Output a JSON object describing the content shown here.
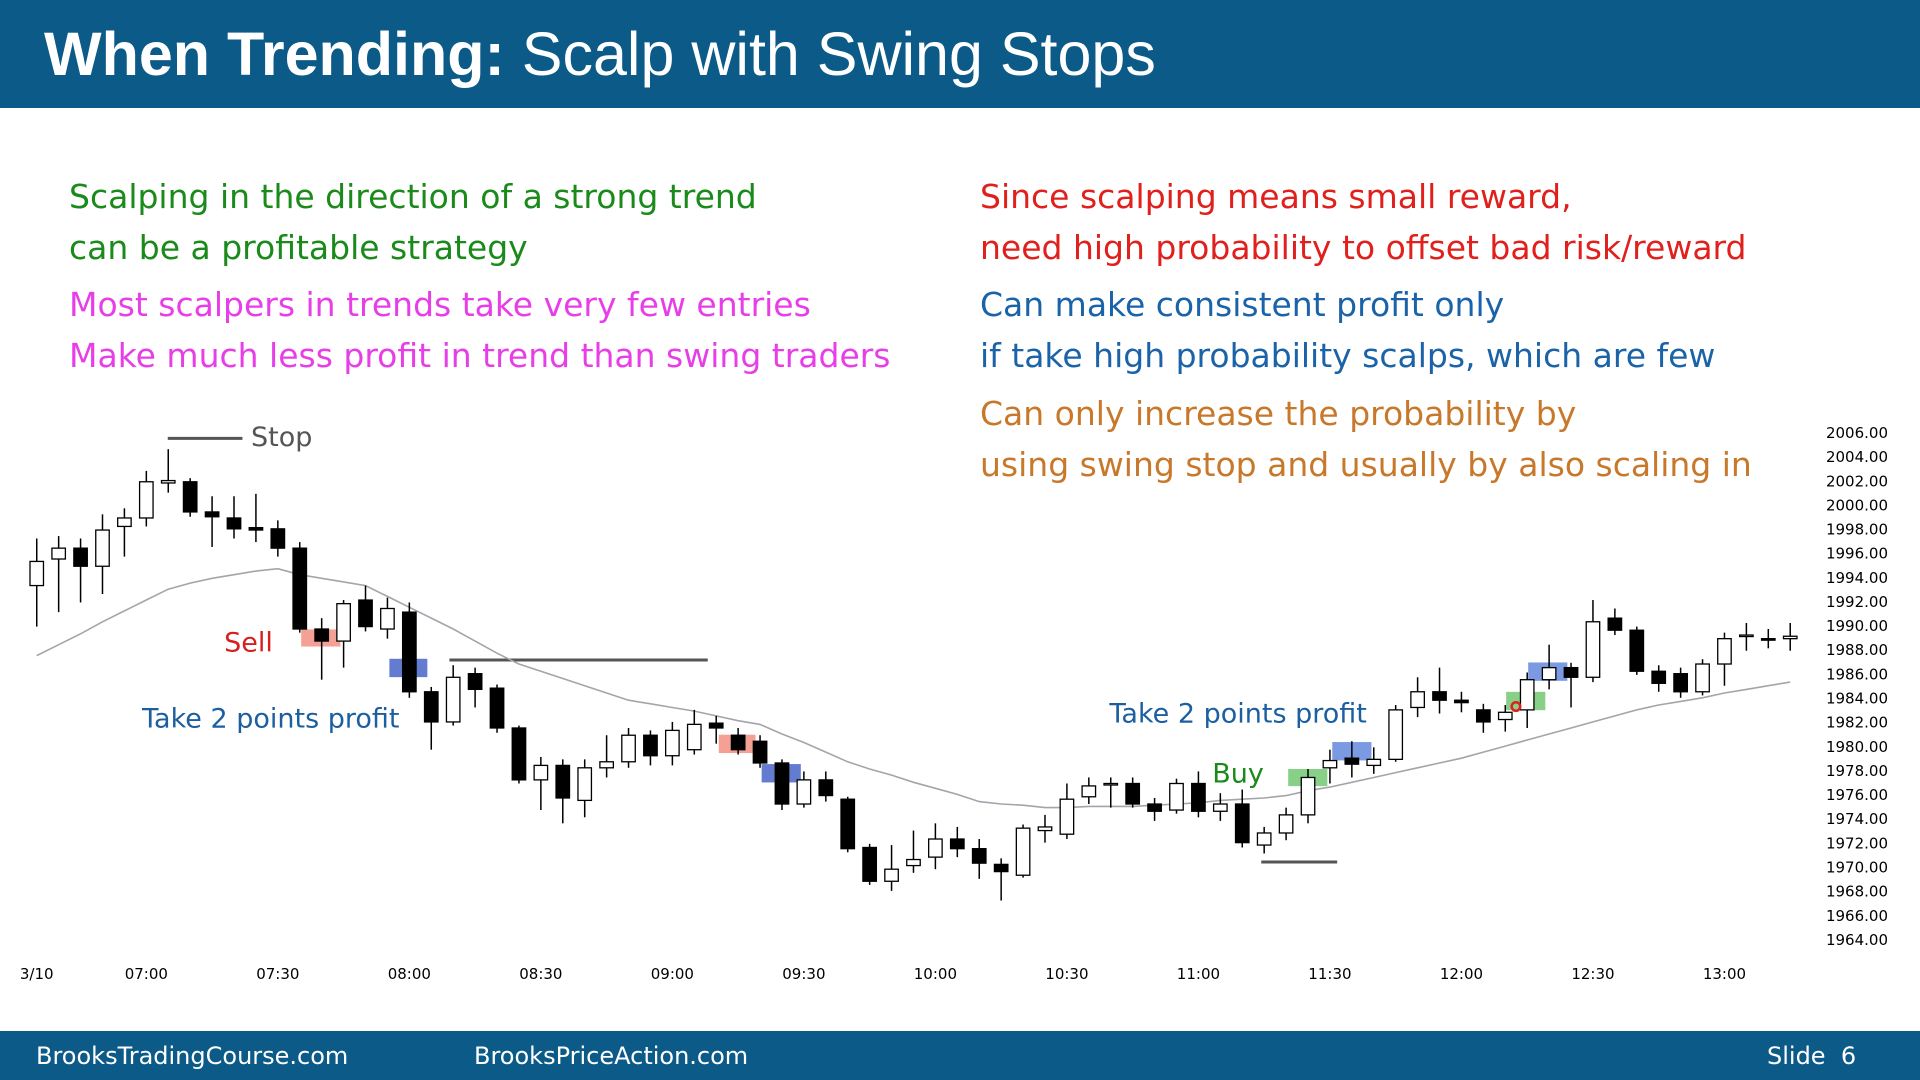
{
  "header": {
    "title_bold": "When Trending:",
    "title_rest": "Scalp with Swing Stops"
  },
  "notes": [
    {
      "color": "#1a8a1a",
      "lines": [
        "Scalping in the direction of a strong trend",
        "can be a profitable strategy"
      ]
    },
    {
      "color": "#e83ee8",
      "lines": [
        "Most scalpers in trends take very few entries",
        "Make much less profit in trend than swing traders"
      ]
    },
    {
      "color": "#e0201c",
      "lines": [
        "Since scalping means small reward,",
        "need high probability to offset bad risk/reward"
      ]
    },
    {
      "color": "#1b63a8",
      "lines": [
        "Can make consistent profit only",
        "if take high probability scalps, which are few"
      ]
    },
    {
      "color": "#c8782a",
      "lines": [
        "Can only increase the probability by",
        "using swing stop and usually by also scaling in"
      ]
    }
  ],
  "chart_data": {
    "type": "candlestick",
    "categories": [
      "3/10",
      null,
      null,
      null,
      null,
      "07:00",
      null,
      null,
      null,
      null,
      null,
      "07:30",
      null,
      null,
      null,
      null,
      null,
      "08:00",
      null,
      null,
      null,
      null,
      null,
      "08:30",
      null,
      null,
      null,
      null,
      null,
      "09:00",
      null,
      null,
      null,
      null,
      null,
      "09:30",
      null,
      null,
      null,
      null,
      null,
      "10:00",
      null,
      null,
      null,
      null,
      null,
      "10:30",
      null,
      null,
      null,
      null,
      null,
      "11:00",
      null,
      null,
      null,
      null,
      null,
      "11:30",
      null,
      null,
      null,
      null,
      null,
      "12:00",
      null,
      null,
      null,
      null,
      null,
      "12:30",
      null,
      null,
      null,
      null,
      null,
      "13:00",
      null,
      null,
      null
    ],
    "open": [
      1993.4,
      1995.6,
      1996.5,
      1995.0,
      1998.3,
      1999.0,
      2001.9,
      2002.0,
      1999.5,
      1999.0,
      1998.2,
      1998.1,
      1996.5,
      1989.8,
      1988.8,
      1992.2,
      1989.8,
      1991.2,
      1984.6,
      1982.1,
      1986.1,
      1984.9,
      1981.6,
      1977.3,
      1978.5,
      1975.6,
      1978.3,
      1978.8,
      1981.0,
      1979.3,
      1979.8,
      1982.0,
      1981.0,
      1980.5,
      1978.7,
      1975.3,
      1977.3,
      1975.7,
      1971.7,
      1968.9,
      1970.2,
      1970.9,
      1972.4,
      1971.6,
      1970.3,
      1969.4,
      1973.1,
      1972.8,
      1975.9,
      1976.9,
      1977.0,
      1975.3,
      1974.8,
      1977.0,
      1974.7,
      1975.3,
      1971.9,
      1972.9,
      1974.4,
      1978.3,
      1979.1,
      1978.5,
      1979.0,
      1983.3,
      1984.6,
      1983.9,
      1983.1,
      1982.3,
      1983.1,
      1985.6,
      1986.6,
      1985.8,
      1990.7,
      1989.7,
      1986.3,
      1986.1,
      1984.6,
      1986.9,
      1989.2,
      1989.0,
      1989.0
    ],
    "high": [
      1997.3,
      1997.5,
      1997.3,
      1999.3,
      1999.8,
      2002.9,
      2004.7,
      2002.3,
      2000.8,
      2000.8,
      2001.0,
      1998.8,
      1997.0,
      1990.7,
      1992.2,
      1993.4,
      1992.4,
      1992.0,
      1985.0,
      1986.8,
      1986.6,
      1985.2,
      1981.8,
      1979.2,
      1979.0,
      1979.0,
      1981.0,
      1981.6,
      1981.4,
      1982.1,
      1983.1,
      1982.6,
      1981.6,
      1981.0,
      1979.0,
      1978.0,
      1978.0,
      1975.9,
      1972.0,
      1971.9,
      1973.1,
      1973.7,
      1973.4,
      1972.4,
      1970.8,
      1973.6,
      1974.4,
      1977.0,
      1977.5,
      1977.5,
      1977.5,
      1975.8,
      1977.4,
      1978.0,
      1976.2,
      1976.5,
      1973.4,
      1975.0,
      1978.2,
      1979.8,
      1980.5,
      1980.0,
      1983.5,
      1985.8,
      1986.6,
      1984.6,
      1983.6,
      1983.5,
      1986.2,
      1988.5,
      1987.0,
      1992.2,
      1991.5,
      1990.0,
      1986.8,
      1986.6,
      1987.3,
      1989.5,
      1990.3,
      1989.8,
      1990.3
    ],
    "low": [
      1990.0,
      1991.2,
      1992.0,
      1992.7,
      1995.8,
      1998.3,
      2001.1,
      1999.1,
      1996.6,
      1997.3,
      1997.0,
      1995.8,
      1989.5,
      1985.6,
      1986.6,
      1989.6,
      1989.0,
      1984.1,
      1979.8,
      1981.8,
      1983.3,
      1981.2,
      1977.0,
      1974.8,
      1973.7,
      1974.2,
      1977.5,
      1978.3,
      1978.5,
      1978.5,
      1979.4,
      1980.3,
      1979.4,
      1978.3,
      1974.8,
      1975.0,
      1975.5,
      1971.3,
      1968.6,
      1968.1,
      1969.6,
      1969.9,
      1970.9,
      1969.1,
      1967.3,
      1969.2,
      1972.1,
      1972.4,
      1975.3,
      1975.0,
      1975.0,
      1973.9,
      1974.5,
      1974.2,
      1973.9,
      1971.7,
      1971.2,
      1972.3,
      1973.7,
      1977.0,
      1977.5,
      1977.8,
      1978.8,
      1982.5,
      1982.8,
      1982.9,
      1981.2,
      1981.3,
      1981.6,
      1984.8,
      1983.3,
      1985.4,
      1989.3,
      1986.0,
      1984.6,
      1984.1,
      1984.3,
      1985.1,
      1988.0,
      1988.2,
      1988.0
    ],
    "close": [
      1995.4,
      1996.5,
      1995.0,
      1998.0,
      1999.0,
      2002.0,
      2002.1,
      1999.5,
      1999.1,
      1998.1,
      1998.0,
      1996.5,
      1989.8,
      1988.8,
      1991.9,
      1990.0,
      1991.5,
      1984.6,
      1982.1,
      1985.8,
      1984.8,
      1981.6,
      1977.3,
      1978.5,
      1975.8,
      1978.3,
      1978.8,
      1981.0,
      1979.3,
      1981.4,
      1981.9,
      1981.6,
      1979.8,
      1978.7,
      1975.3,
      1977.3,
      1976.0,
      1971.6,
      1968.9,
      1969.9,
      1970.7,
      1972.4,
      1971.6,
      1970.4,
      1969.7,
      1973.3,
      1973.4,
      1975.7,
      1976.8,
      1977.0,
      1975.3,
      1974.7,
      1977.0,
      1974.7,
      1975.3,
      1972.1,
      1972.9,
      1974.4,
      1977.5,
      1978.9,
      1978.6,
      1979.0,
      1983.1,
      1984.6,
      1983.9,
      1983.7,
      1982.1,
      1982.9,
      1985.6,
      1986.6,
      1985.8,
      1990.4,
      1989.7,
      1986.3,
      1985.3,
      1984.6,
      1986.9,
      1989.0,
      1989.3,
      1988.9,
      1989.2
    ],
    "moving_average": {
      "color": "#a4a4ac",
      "values": [
        1987.6,
        1988.5,
        1989.4,
        1990.4,
        1991.3,
        1992.2,
        1993.1,
        1993.6,
        1994.0,
        1994.3,
        1994.6,
        1994.8,
        1994.3,
        1994.0,
        1993.7,
        1993.4,
        1992.5,
        1991.6,
        1990.7,
        1989.8,
        1988.8,
        1987.8,
        1986.9,
        1986.3,
        1985.7,
        1985.1,
        1984.5,
        1983.9,
        1983.6,
        1983.3,
        1983.0,
        1982.6,
        1982.2,
        1981.9,
        1981.1,
        1980.4,
        1979.6,
        1978.8,
        1978.2,
        1977.7,
        1977.1,
        1976.6,
        1976.1,
        1975.5,
        1975.3,
        1975.2,
        1975.0,
        1975.0,
        1975.1,
        1975.1,
        1975.1,
        1975.2,
        1975.3,
        1975.4,
        1975.6,
        1975.7,
        1975.8,
        1976.0,
        1976.4,
        1976.7,
        1977.1,
        1977.5,
        1977.9,
        1978.3,
        1978.7,
        1979.1,
        1979.6,
        1980.1,
        1980.6,
        1981.1,
        1981.6,
        1982.1,
        1982.6,
        1983.1,
        1983.5,
        1983.8,
        1984.1,
        1984.5,
        1984.8,
        1985.1,
        1985.4
      ]
    },
    "up_color": "#ffffff",
    "down_color": "#000000",
    "ylim": [
      1962,
      2008
    ],
    "yticks": [
      {
        "value": 2006,
        "label": "2006.00"
      },
      {
        "value": 2004,
        "label": "2004.00"
      },
      {
        "value": 2002,
        "label": "2002.00"
      },
      {
        "value": 2000,
        "label": "2000.00"
      },
      {
        "value": 1998,
        "label": "1998.00"
      },
      {
        "value": 1996,
        "label": "1996.00"
      },
      {
        "value": 1994,
        "label": "1994.00"
      },
      {
        "value": 1992,
        "label": "1992.00"
      },
      {
        "value": 1990,
        "label": "1990.00"
      },
      {
        "value": 1988,
        "label": "1988.00"
      },
      {
        "value": 1986,
        "label": "1986.00"
      },
      {
        "value": 1984,
        "label": "1984.00"
      },
      {
        "value": 1982,
        "label": "1982.00"
      },
      {
        "value": 1980,
        "label": "1980.00"
      },
      {
        "value": 1978,
        "label": "1978.00"
      },
      {
        "value": 1976,
        "label": "1976.00"
      },
      {
        "value": 1974,
        "label": "1974.00"
      },
      {
        "value": 1972,
        "label": "1972.00"
      },
      {
        "value": 1970,
        "label": "1970.00"
      },
      {
        "value": 1968,
        "label": "1968.00"
      },
      {
        "value": 1966,
        "label": "1966.00"
      },
      {
        "value": 1964,
        "label": "1964.00"
      }
    ],
    "annotations": [
      {
        "text": "Stop",
        "color": "#555555"
      },
      {
        "text": "Sell",
        "color": "#d62020"
      },
      {
        "text": "Take 2 points profit",
        "color": "#1b5fa0"
      },
      {
        "text": "Take 2 points profit",
        "color": "#1b5fa0"
      },
      {
        "text": "Buy",
        "color": "#1a8a1a"
      }
    ]
  },
  "footer": {
    "left": "BrooksTradingCourse.com",
    "middle": "BrooksPriceAction.com",
    "slide": "Slide  6"
  }
}
